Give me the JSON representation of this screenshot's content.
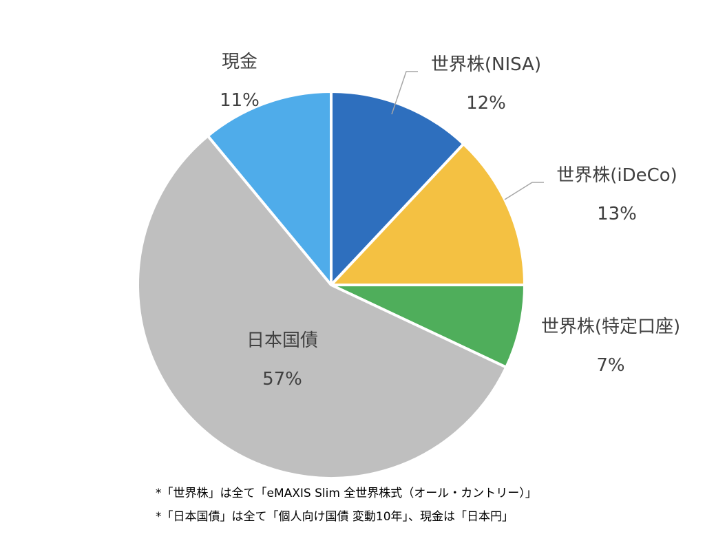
{
  "chart_data": {
    "type": "pie",
    "slices": [
      {
        "label": "世界株(NISA)",
        "value": 12,
        "value_label": "12%",
        "color": "#2E6FBE"
      },
      {
        "label": "世界株(iDeCo)",
        "value": 13,
        "value_label": "13%",
        "color": "#F4C142"
      },
      {
        "label": "世界株(特定口座)",
        "value": 7,
        "value_label": "7%",
        "color": "#4FAE5B"
      },
      {
        "label": "日本国債",
        "value": 57,
        "value_label": "57%",
        "color": "#BFBFBF"
      },
      {
        "label": "現金",
        "value": 11,
        "value_label": "11%",
        "color": "#4FACEA"
      }
    ],
    "start_angle_deg": 0,
    "direction": "clockwise",
    "legend": "none"
  },
  "footnotes": [
    "*「世界株」は全て「eMAXIS Slim 全世界株式（オール・カントリー）」",
    "*「日本国債」は全て「個人向け国債 変動10年」、現金は「日本円」"
  ]
}
